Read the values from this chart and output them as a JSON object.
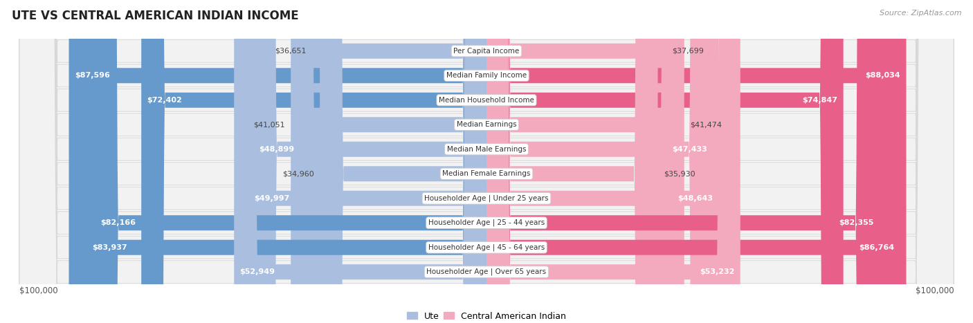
{
  "title": "UTE VS CENTRAL AMERICAN INDIAN INCOME",
  "source": "Source: ZipAtlas.com",
  "categories": [
    "Per Capita Income",
    "Median Family Income",
    "Median Household Income",
    "Median Earnings",
    "Median Male Earnings",
    "Median Female Earnings",
    "Householder Age | Under 25 years",
    "Householder Age | 25 - 44 years",
    "Householder Age | 45 - 64 years",
    "Householder Age | Over 65 years"
  ],
  "ute_values": [
    36651,
    87596,
    72402,
    41051,
    48899,
    34960,
    49997,
    82166,
    83937,
    52949
  ],
  "central_values": [
    37699,
    88034,
    74847,
    41474,
    47433,
    35930,
    48643,
    82355,
    86764,
    53232
  ],
  "ute_labels": [
    "$36,651",
    "$87,596",
    "$72,402",
    "$41,051",
    "$48,899",
    "$34,960",
    "$49,997",
    "$82,166",
    "$83,937",
    "$52,949"
  ],
  "central_labels": [
    "$37,699",
    "$88,034",
    "$74,847",
    "$41,474",
    "$47,433",
    "$35,930",
    "$48,643",
    "$82,355",
    "$86,764",
    "$53,232"
  ],
  "ute_color_light": "#AABFE0",
  "ute_color_dark": "#6699CC",
  "central_color_light": "#F4AABE",
  "central_color_dark": "#E8608A",
  "ute_dark_indices": [
    1,
    2,
    7,
    8
  ],
  "central_dark_indices": [
    1,
    2,
    7,
    8
  ],
  "max_val": 100000,
  "legend_ute": "Ute",
  "legend_central": "Central American Indian",
  "xlabel_left": "$100,000",
  "xlabel_right": "$100,000",
  "row_bg": "#f2f2f2",
  "row_border": "#d8d8d8",
  "inside_label_threshold": 0.45
}
